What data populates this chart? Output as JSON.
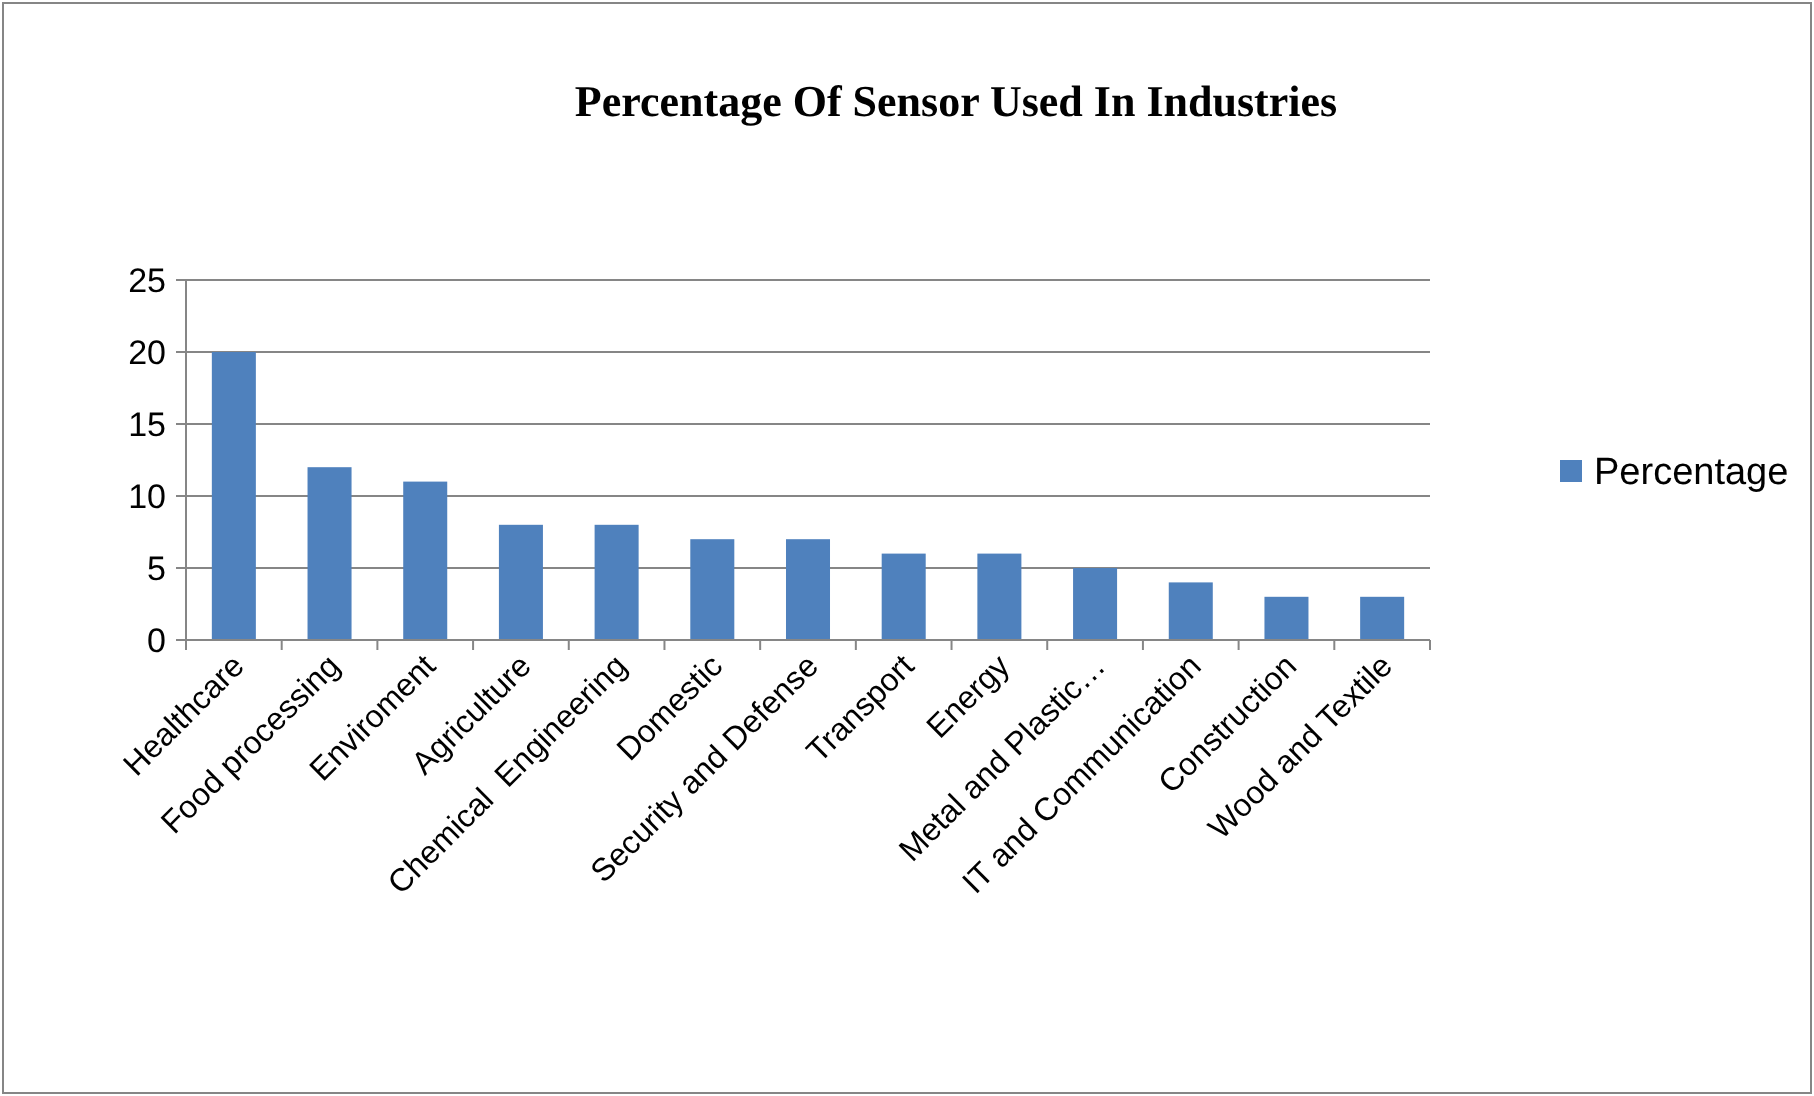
{
  "chart_data": {
    "type": "bar",
    "title": "Percentage Of Sensor Used In Industries",
    "categories": [
      "Healthcare",
      "Food processing",
      "Enviroment",
      "Agriculture",
      "Chemical  Engineering",
      "Domestic",
      "Security and Defense",
      "Transport",
      "Energy",
      "Metal and Plastic…",
      "IT and Communication",
      "Construction",
      "Wood and Textile"
    ],
    "series": [
      {
        "name": "Percentage",
        "color": "#4f81bd",
        "values": [
          20,
          12,
          11,
          8,
          8,
          7,
          7,
          6,
          6,
          5,
          4,
          3,
          3
        ]
      }
    ],
    "ylim": [
      0,
      25
    ],
    "yticks": [
      0,
      5,
      10,
      15,
      20,
      25
    ],
    "grid": "y",
    "legend": "right"
  }
}
